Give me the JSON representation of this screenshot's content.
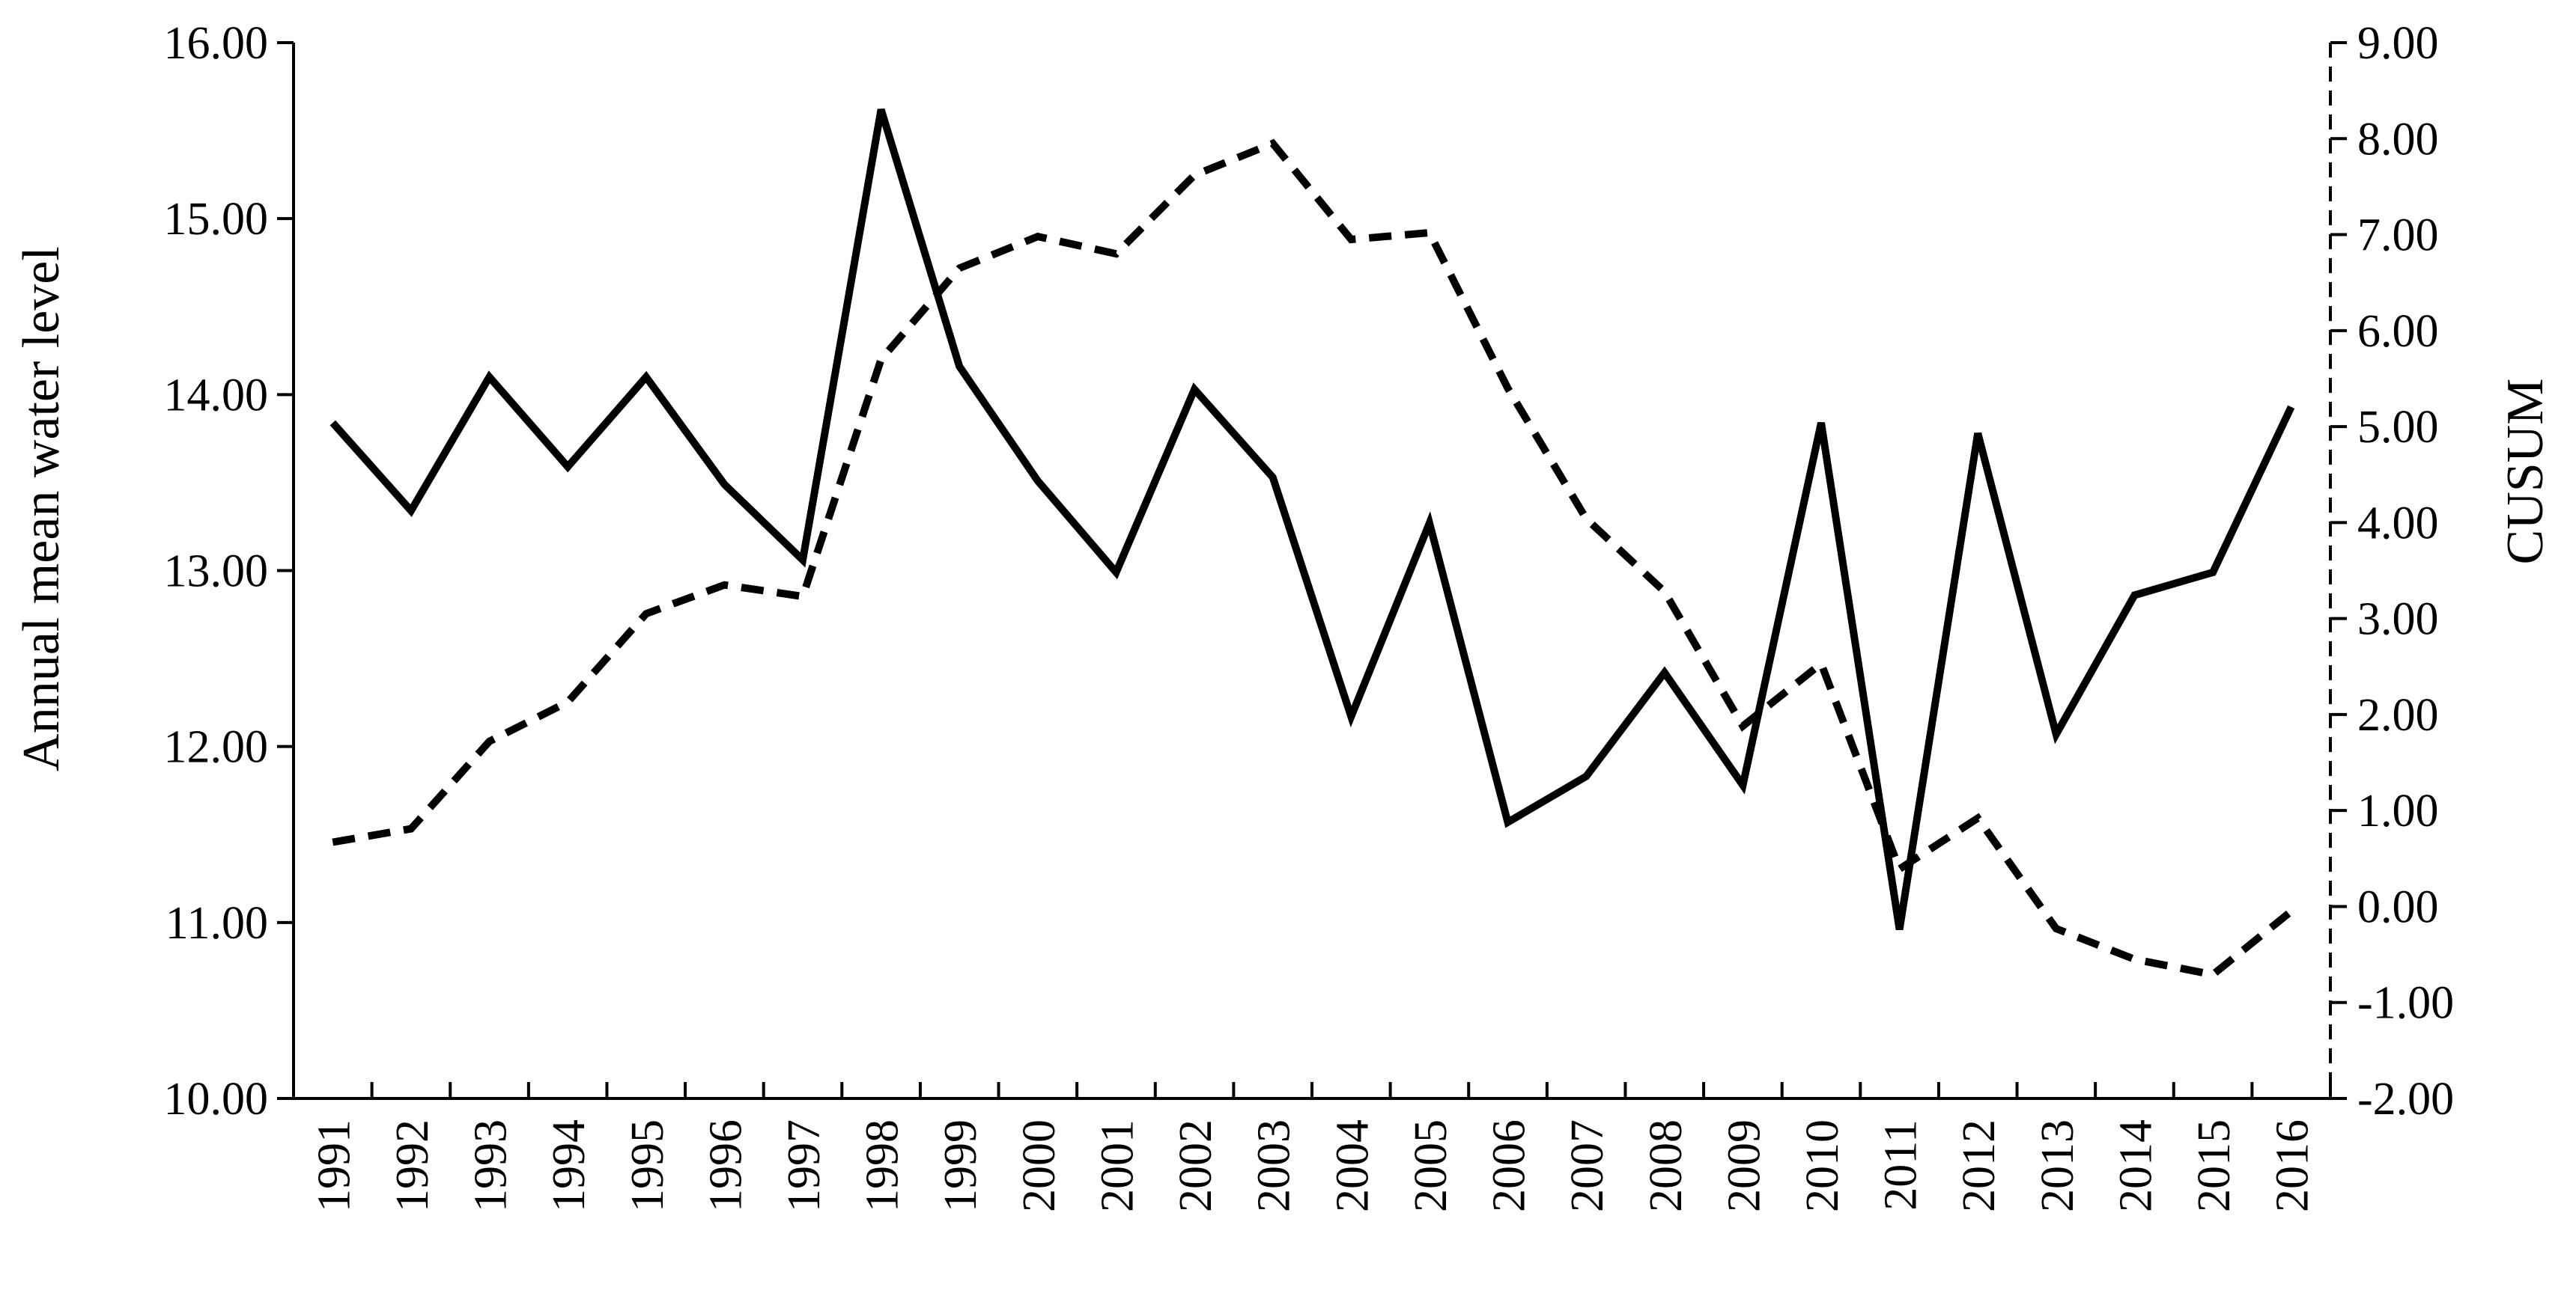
{
  "chart_data": {
    "type": "line",
    "title": "",
    "categories": [
      "1991",
      "1992",
      "1993",
      "1994",
      "1995",
      "1996",
      "1997",
      "1998",
      "1999",
      "2000",
      "2001",
      "2002",
      "2003",
      "2004",
      "2005",
      "2006",
      "2007",
      "2008",
      "2009",
      "2010",
      "2011",
      "2012",
      "2013",
      "2014",
      "2015",
      "2016"
    ],
    "y_left": {
      "label": "Annual mean water level",
      "ylim": [
        10,
        16
      ],
      "ticks": [
        "10.00",
        "11.00",
        "12.00",
        "13.00",
        "14.00",
        "15.00",
        "16.00"
      ]
    },
    "y_right": {
      "label": "CUSUM",
      "ylim": [
        -2,
        9
      ],
      "ticks": [
        "-2.00",
        "-1.00",
        "0.00",
        "1.00",
        "2.00",
        "3.00",
        "4.00",
        "5.00",
        "6.00",
        "7.00",
        "8.00",
        "9.00"
      ]
    },
    "grid": false,
    "legend": "none",
    "series": [
      {
        "axis": "left",
        "style": "solid",
        "color": "#000000",
        "values": [
          13.84,
          13.34,
          14.1,
          13.59,
          14.1,
          13.49,
          13.06,
          15.62,
          14.16,
          13.51,
          12.99,
          14.03,
          13.53,
          12.17,
          13.27,
          11.57,
          11.83,
          12.42,
          11.78,
          13.84,
          10.96,
          13.78,
          12.07,
          12.86,
          12.99,
          13.93
        ]
      },
      {
        "axis": "right",
        "style": "dashed",
        "color": "#000000",
        "values": [
          0.67,
          0.81,
          1.72,
          2.13,
          3.05,
          3.35,
          3.23,
          5.7,
          6.65,
          6.98,
          6.8,
          7.62,
          7.95,
          6.95,
          7.02,
          5.4,
          4.04,
          3.28,
          1.88,
          2.53,
          0.39,
          0.92,
          -0.23,
          -0.55,
          -0.71,
          -0.05
        ]
      }
    ]
  }
}
